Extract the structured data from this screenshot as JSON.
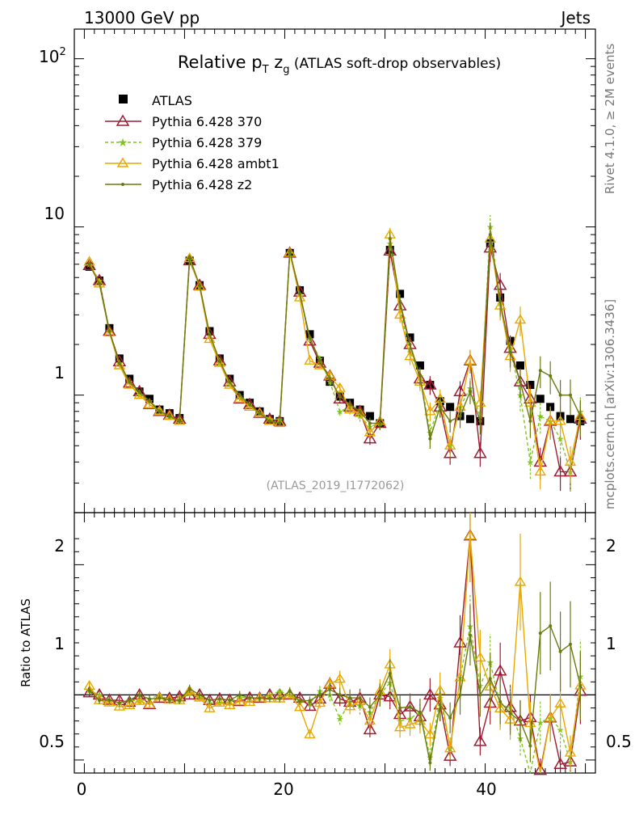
{
  "header": {
    "left": "13000 GeV pp",
    "right": "Jets"
  },
  "side_labels": {
    "rivet": "Rivet 4.1.0, ≥ 2M events",
    "mcplots": "mcplots.cern.ch [arXiv:1306.3436]"
  },
  "chart_data": {
    "type": "line",
    "title": "Relative pT zg (ATLAS soft-drop observables)",
    "title_parts": {
      "main": "Relative p",
      "sub": "T",
      "mid": " z",
      "sub2": "g",
      "tail": " (ATLAS soft-drop observables)"
    },
    "analysis_id": "(ATLAS_2019_I1772062)",
    "xlim": [
      -1,
      51
    ],
    "x_ticks": [
      0,
      20,
      40
    ],
    "main_ylim": [
      0.2,
      150
    ],
    "main_y_ticks": [
      {
        "v": 1,
        "label": "1"
      },
      {
        "v": 10,
        "label": "10"
      }
    ],
    "main_y_label_100": {
      "base": "10",
      "exp": "2"
    },
    "ratio_ylabel": "Ratio to ATLAS",
    "ratio_ylim": [
      0.4,
      2.4
    ],
    "ratio_y_ticks": [
      {
        "v": 0.5,
        "label": "0.5"
      },
      {
        "v": 1,
        "label": "1"
      },
      {
        "v": 2,
        "label": "2"
      }
    ],
    "x": [
      0.5,
      1.5,
      2.5,
      3.5,
      4.5,
      5.5,
      6.5,
      7.5,
      8.5,
      9.5,
      10.5,
      11.5,
      12.5,
      13.5,
      14.5,
      15.5,
      16.5,
      17.5,
      18.5,
      19.5,
      20.5,
      21.5,
      22.5,
      23.5,
      24.5,
      25.5,
      26.5,
      27.5,
      28.5,
      29.5,
      30.5,
      31.5,
      32.5,
      33.5,
      34.5,
      35.5,
      36.5,
      37.5,
      38.5,
      39.5,
      40.5,
      41.5,
      42.5,
      43.5,
      44.5,
      45.5,
      46.5,
      47.5,
      48.5,
      49.5
    ],
    "series": [
      {
        "name": "ATLAS",
        "color": "#000000",
        "values": [
          5.8,
          4.8,
          2.5,
          1.65,
          1.25,
          1.05,
          0.95,
          0.82,
          0.78,
          0.73,
          6.3,
          4.5,
          2.4,
          1.65,
          1.25,
          1.0,
          0.9,
          0.8,
          0.72,
          0.7,
          7.0,
          4.2,
          2.3,
          1.6,
          1.2,
          0.98,
          0.9,
          0.82,
          0.75,
          0.68,
          7.3,
          4.0,
          2.2,
          1.5,
          1.15,
          0.92,
          0.85,
          0.75,
          0.72,
          0.7,
          8.0,
          3.8,
          2.1,
          1.5,
          1.15,
          0.95,
          0.85,
          0.75,
          0.72,
          0.7
        ]
      },
      {
        "name": "Pythia 6.428 370",
        "color": "#9e1b32",
        "values": [
          5.9,
          4.8,
          2.4,
          1.58,
          1.18,
          1.05,
          0.88,
          0.8,
          0.76,
          0.72,
          6.3,
          4.5,
          2.3,
          1.6,
          1.2,
          0.95,
          0.88,
          0.78,
          0.72,
          0.7,
          7.0,
          4.1,
          2.1,
          1.55,
          1.3,
          0.95,
          0.85,
          0.8,
          0.55,
          0.68,
          7.2,
          3.4,
          2.0,
          1.25,
          1.15,
          0.85,
          0.45,
          1.05,
          1.6,
          0.45,
          7.5,
          4.5,
          1.9,
          1.2,
          0.95,
          0.4,
          0.7,
          0.35,
          0.35,
          0.72
        ]
      },
      {
        "name": "Pythia 6.428 379",
        "color": "#80c31d",
        "values": [
          6.0,
          4.8,
          2.4,
          1.55,
          1.2,
          1.0,
          0.92,
          0.82,
          0.75,
          0.7,
          6.4,
          4.4,
          2.25,
          1.55,
          1.18,
          0.98,
          0.88,
          0.78,
          0.72,
          0.72,
          7.0,
          4.0,
          2.15,
          1.65,
          1.2,
          0.8,
          0.85,
          0.75,
          0.65,
          0.68,
          8.0,
          3.2,
          1.8,
          1.3,
          0.6,
          0.9,
          0.5,
          0.85,
          1.1,
          0.75,
          10.0,
          3.5,
          1.9,
          1.0,
          0.4,
          0.75,
          0.7,
          0.55,
          0.35,
          0.8
        ]
      },
      {
        "name": "Pythia 6.428 ambt1",
        "color": "#e8a800",
        "values": [
          6.2,
          4.6,
          2.35,
          1.5,
          1.15,
          1.0,
          0.88,
          0.8,
          0.75,
          0.7,
          6.5,
          4.4,
          2.15,
          1.55,
          1.15,
          0.95,
          0.85,
          0.78,
          0.7,
          0.68,
          7.0,
          3.8,
          1.6,
          1.5,
          1.3,
          1.1,
          0.82,
          0.78,
          0.6,
          0.7,
          9.0,
          3.0,
          1.7,
          1.2,
          0.8,
          0.95,
          0.5,
          0.85,
          1.6,
          0.9,
          8.5,
          3.4,
          1.7,
          2.8,
          0.9,
          0.35,
          0.7,
          0.7,
          0.4,
          0.75
        ]
      },
      {
        "name": "Pythia 6.428 z2",
        "color": "#6b7a0f",
        "values": [
          6.0,
          4.6,
          2.4,
          1.55,
          1.2,
          1.05,
          0.92,
          0.8,
          0.75,
          0.7,
          6.6,
          4.5,
          2.3,
          1.6,
          1.2,
          1.0,
          0.88,
          0.78,
          0.7,
          0.68,
          7.2,
          4.0,
          2.2,
          1.6,
          1.25,
          0.98,
          0.88,
          0.8,
          0.68,
          0.68,
          8.5,
          3.6,
          2.0,
          1.3,
          0.55,
          0.85,
          0.7,
          0.75,
          1.05,
          0.7,
          9.0,
          3.6,
          1.8,
          1.2,
          0.7,
          1.4,
          1.3,
          1.0,
          1.0,
          0.75
        ]
      }
    ],
    "legend": [
      "ATLAS",
      "Pythia 6.428 370",
      "Pythia 6.428 379",
      "Pythia 6.428 ambt1",
      "Pythia 6.428 z2"
    ]
  }
}
